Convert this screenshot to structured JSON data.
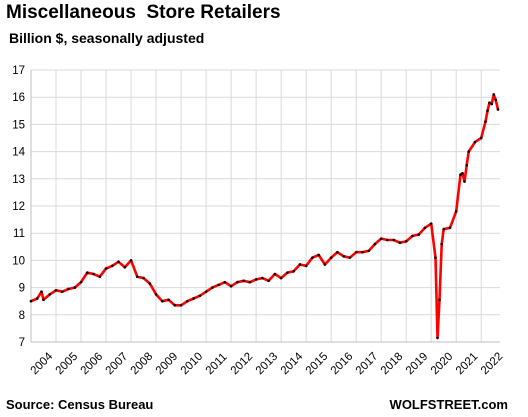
{
  "chart_data": {
    "type": "line",
    "title": "Miscellaneous  Store Retailers",
    "subtitle": "Billion $, seasonally adjusted",
    "xlabel": "",
    "ylabel": "",
    "ylim": [
      7,
      17
    ],
    "xlim": [
      2004,
      2022.75
    ],
    "yticks": [
      7,
      8,
      9,
      10,
      11,
      12,
      13,
      14,
      15,
      16,
      17
    ],
    "xticks": [
      "2004",
      "2005",
      "2006",
      "2007",
      "2008",
      "2009",
      "2010",
      "2011",
      "2012",
      "2013",
      "2014",
      "2015",
      "2016",
      "2017",
      "2018",
      "2019",
      "2020",
      "2021",
      "2022"
    ],
    "grid": {
      "horizontal": true,
      "vertical": true
    },
    "line_color": "#ff0000",
    "marker_color": "#000000",
    "series": [
      {
        "x": [
          2004.0,
          2004.25,
          2004.42,
          2004.5,
          2004.75,
          2005.0,
          2005.25,
          2005.5,
          2005.75,
          2006.0,
          2006.25,
          2006.5,
          2006.75,
          2007.0,
          2007.25,
          2007.5,
          2007.75,
          2008.0,
          2008.25,
          2008.5,
          2008.75,
          2009.0,
          2009.25,
          2009.5,
          2009.75,
          2010.0,
          2010.25,
          2010.5,
          2010.75,
          2011.0,
          2011.25,
          2011.5,
          2011.75,
          2012.0,
          2012.25,
          2012.5,
          2012.75,
          2013.0,
          2013.25,
          2013.5,
          2013.75,
          2014.0,
          2014.25,
          2014.5,
          2014.75,
          2015.0,
          2015.25,
          2015.5,
          2015.75,
          2016.0,
          2016.25,
          2016.5,
          2016.75,
          2017.0,
          2017.25,
          2017.5,
          2017.75,
          2018.0,
          2018.25,
          2018.5,
          2018.75,
          2019.0,
          2019.25,
          2019.5,
          2019.75,
          2020.0,
          2020.17,
          2020.25,
          2020.33,
          2020.42,
          2020.5,
          2020.75,
          2021.0,
          2021.17,
          2021.25,
          2021.33,
          2021.42,
          2021.5,
          2021.75,
          2022.0,
          2022.17,
          2022.25,
          2022.33,
          2022.42,
          2022.5,
          2022.58,
          2022.67
        ],
        "y": [
          8.5,
          8.6,
          8.85,
          8.55,
          8.75,
          8.9,
          8.85,
          8.95,
          9.0,
          9.2,
          9.55,
          9.5,
          9.4,
          9.7,
          9.8,
          9.95,
          9.75,
          10.0,
          9.4,
          9.35,
          9.15,
          8.75,
          8.5,
          8.55,
          8.35,
          8.35,
          8.5,
          8.6,
          8.7,
          8.85,
          9.0,
          9.1,
          9.2,
          9.05,
          9.2,
          9.25,
          9.2,
          9.3,
          9.35,
          9.25,
          9.5,
          9.35,
          9.55,
          9.6,
          9.85,
          9.8,
          10.1,
          10.2,
          9.85,
          10.1,
          10.3,
          10.15,
          10.1,
          10.3,
          10.3,
          10.35,
          10.6,
          10.8,
          10.75,
          10.75,
          10.65,
          10.7,
          10.9,
          10.95,
          11.2,
          11.35,
          10.1,
          7.15,
          8.55,
          10.6,
          11.15,
          11.2,
          11.8,
          13.15,
          13.2,
          12.9,
          13.5,
          14.0,
          14.35,
          14.5,
          15.1,
          15.5,
          15.8,
          15.75,
          16.1,
          15.9,
          15.55
        ]
      }
    ]
  },
  "footer": {
    "source": "Source: Census Bureau",
    "brand": "WOLFSTREET.com"
  }
}
